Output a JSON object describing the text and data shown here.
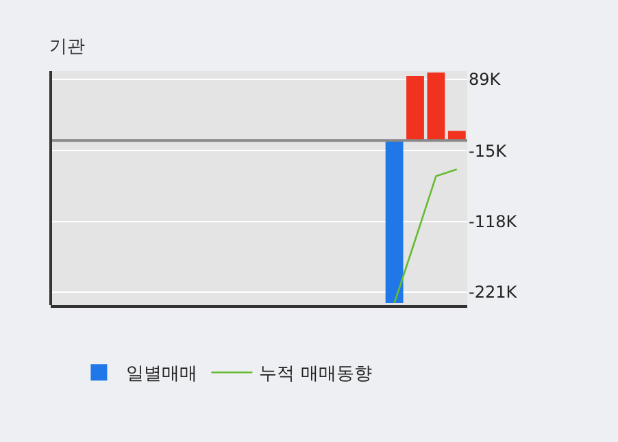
{
  "chart_data": {
    "type": "bar",
    "title": "기관",
    "categories": [
      null,
      null,
      null,
      null,
      null,
      null,
      null,
      null,
      null,
      null,
      null,
      null,
      null,
      null,
      null,
      null,
      null,
      null,
      null,
      null
    ],
    "series": [
      {
        "name": "일별매매",
        "colors": [
          "#1f77e8",
          "#1f77e8",
          "#1f77e8",
          "#1f77e8",
          "#1f77e8",
          "#1f77e8",
          "#1f77e8",
          "#1f77e8",
          "#1f77e8",
          "#1f77e8",
          "#1f77e8",
          "#1f77e8",
          "#1f77e8",
          "#1f77e8",
          "#1f77e8",
          "#1f77e8",
          "#1f77e8",
          "#f0321e",
          "#f0321e",
          "#f0321e"
        ],
        "values": [
          null,
          null,
          null,
          null,
          null,
          null,
          null,
          null,
          null,
          null,
          null,
          null,
          null,
          null,
          null,
          null,
          -237,
          94,
          99,
          14
        ]
      },
      {
        "name": "누적 매매동향",
        "type": "line",
        "color": "#66bb33",
        "values": [
          null,
          null,
          null,
          null,
          null,
          null,
          null,
          null,
          null,
          null,
          null,
          null,
          null,
          null,
          null,
          null,
          -237,
          -145,
          -52,
          -42
        ]
      }
    ],
    "ylim": [
      -240,
      101
    ],
    "yticks": [
      {
        "value": 89,
        "label": "89K"
      },
      {
        "value": -15,
        "label": "-15K"
      },
      {
        "value": -118,
        "label": "-118K"
      },
      {
        "value": -221,
        "label": "-221K"
      }
    ],
    "grid": "y",
    "legend": "bottom",
    "marker": "none",
    "ref_lines": [
      {
        "axis": "y",
        "value": 0,
        "label": null,
        "color": "#888888"
      }
    ]
  }
}
